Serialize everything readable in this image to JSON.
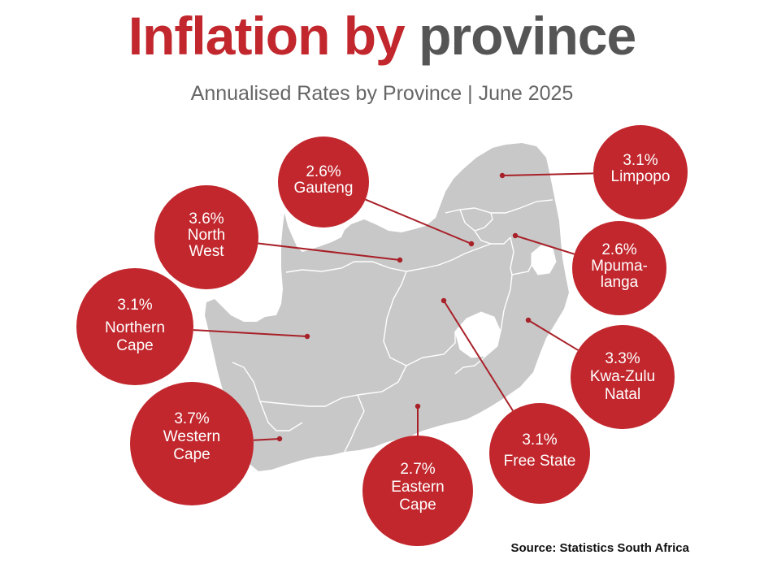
{
  "header": {
    "title_part1": "Inflation by",
    "title_part2": "province",
    "subtitle": "Annualised Rates by Province | June 2025"
  },
  "source": "Source: Statistics South Africa",
  "colors": {
    "accent": "#c1272d",
    "map_fill": "#c8c8c8",
    "province_border": "#ffffff",
    "leader_line": "#a82028"
  },
  "provinces": [
    {
      "id": "limpopo",
      "rate": "3.1%",
      "lines": [
        "Limpopo"
      ]
    },
    {
      "id": "gauteng",
      "rate": "2.6%",
      "lines": [
        "Gauteng"
      ]
    },
    {
      "id": "north-west",
      "rate": "3.6%",
      "lines": [
        "North",
        "West"
      ]
    },
    {
      "id": "mpumalanga",
      "rate": "2.6%",
      "lines": [
        "Mpuma-",
        "langa"
      ]
    },
    {
      "id": "northern-cape",
      "rate": "3.1%",
      "lines": [
        "Northern",
        "Cape"
      ]
    },
    {
      "id": "kwazulu-natal",
      "rate": "3.3%",
      "lines": [
        "Kwa-Zulu",
        "Natal"
      ]
    },
    {
      "id": "western-cape",
      "rate": "3.7%",
      "lines": [
        "Western",
        "Cape"
      ]
    },
    {
      "id": "free-state",
      "rate": "3.1%",
      "lines": [
        "Free State"
      ]
    },
    {
      "id": "eastern-cape",
      "rate": "2.7%",
      "lines": [
        "Eastern",
        "Cape"
      ]
    }
  ]
}
